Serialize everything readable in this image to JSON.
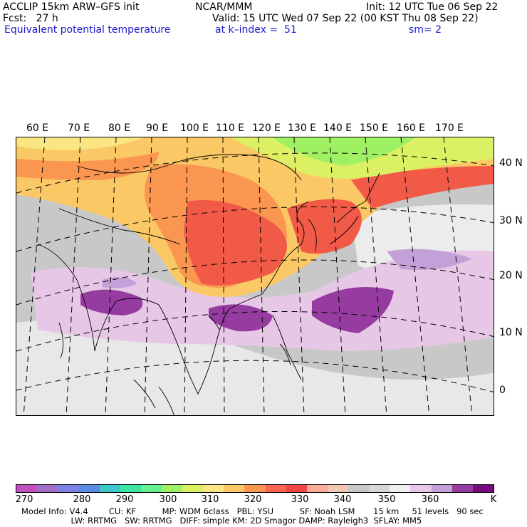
{
  "header": {
    "line1_left": "ACCLIP 15km ARW–GFS init",
    "line1_mid": "NCAR/MMM",
    "line1_right": "Init: 12 UTC Tue 06 Sep 22",
    "line2_left": "Fcst:   27 h",
    "line2_right": "Valid: 15 UTC Wed 07 Sep 22 (00 KST Thu 08 Sep 22)",
    "line3_left": "Equivalent potential temperature",
    "line3_mid": "at k–index =  51",
    "line3_right": "sm= 2"
  },
  "map": {
    "lon_labels": [
      "60 E",
      "70 E",
      "80 E",
      "90 E",
      "100 E",
      "110 E",
      "120 E",
      "130 E",
      "140 E",
      "150 E",
      "160 E",
      "170 E"
    ],
    "lat_labels": [
      "40 N",
      "30 N",
      "20 N",
      "10 N",
      "0"
    ]
  },
  "colorbar": {
    "colors": [
      "#c34fc3",
      "#a06ec8",
      "#8080e6",
      "#5a8ce6",
      "#3cc8c8",
      "#3ce6a0",
      "#64f08c",
      "#a0f064",
      "#dcf064",
      "#fae682",
      "#fac864",
      "#fa9650",
      "#fa6450",
      "#f04646",
      "#faaa96",
      "#f0c8b4",
      "#c8c8c8",
      "#d7d7d7",
      "#f0f0f0",
      "#e6c8e6",
      "#c3a0d7",
      "#963ca0",
      "#780a82"
    ],
    "ticks": [
      "270",
      "280",
      "290",
      "300",
      "310",
      "320",
      "330",
      "340",
      "350",
      "360",
      "K"
    ]
  },
  "footer": {
    "line1": "Model Info: V4.4        CU: KF          MP: WDM 6class   PBL: YSU          SF: Noah LSM       15 km     51 levels   90 sec",
    "line2": "                   LW: RRTMG   SW: RRTMG   DIFF: simple KM: 2D Smagor DAMP: Rayleigh3  SFLAY: MM5"
  }
}
